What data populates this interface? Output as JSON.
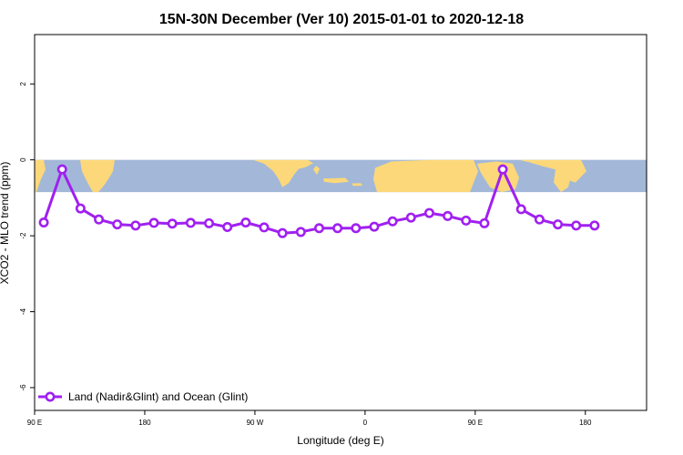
{
  "chart_data": {
    "type": "line",
    "title": "15N-30N December (Ver 10)   2015-01-01 to 2020-12-18",
    "xlabel": "Longitude (deg E)",
    "ylabel": "XCO2 - MLO trend (ppm)",
    "xlim": [
      90,
      590
    ],
    "ylim": [
      -6.6,
      3.3
    ],
    "x_ticks": [
      {
        "value": 90,
        "label": "90 E"
      },
      {
        "value": 180,
        "label": "180"
      },
      {
        "value": 270,
        "label": "90 W"
      },
      {
        "value": 360,
        "label": "0"
      },
      {
        "value": 450,
        "label": "90 E"
      },
      {
        "value": 540,
        "label": "180"
      }
    ],
    "y_ticks": [
      {
        "value": 2,
        "label": "2"
      },
      {
        "value": 0,
        "label": "0"
      },
      {
        "value": -2,
        "label": "-2"
      },
      {
        "value": -4,
        "label": "-4"
      },
      {
        "value": -6,
        "label": "-6"
      }
    ],
    "series": [
      {
        "name": "Land (Nadir&Glint) and Ocean (Glint)",
        "color": "#a020f0",
        "x": [
          97.5,
          112.5,
          127.5,
          142.5,
          157.5,
          172.5,
          187.5,
          202.5,
          217.5,
          232.5,
          247.5,
          262.5,
          277.5,
          292.5,
          307.5,
          322.5,
          337.5,
          352.5,
          367.5,
          382.5,
          397.5,
          412.5,
          427.5,
          442.5,
          457.5,
          472.5,
          487.5,
          502.5,
          517.5,
          532.5,
          547.5
        ],
        "values": [
          -1.65,
          -0.25,
          -1.28,
          -1.57,
          -1.7,
          -1.73,
          -1.66,
          -1.68,
          -1.66,
          -1.67,
          -1.77,
          -1.65,
          -1.78,
          -1.93,
          -1.9,
          -1.8,
          -1.8,
          -1.8,
          -1.76,
          -1.62,
          -1.52,
          -1.4,
          -1.48,
          -1.6,
          -1.67,
          -0.25,
          -1.3,
          -1.57,
          -1.7,
          -1.73,
          -1.73
        ]
      }
    ],
    "map_band": {
      "ymin": -0.85,
      "ymax": 0.0,
      "ocean_color": "#a3b8d8",
      "land_color": "#fcd87a"
    },
    "legend_position": "bottom-left",
    "grid": false
  }
}
